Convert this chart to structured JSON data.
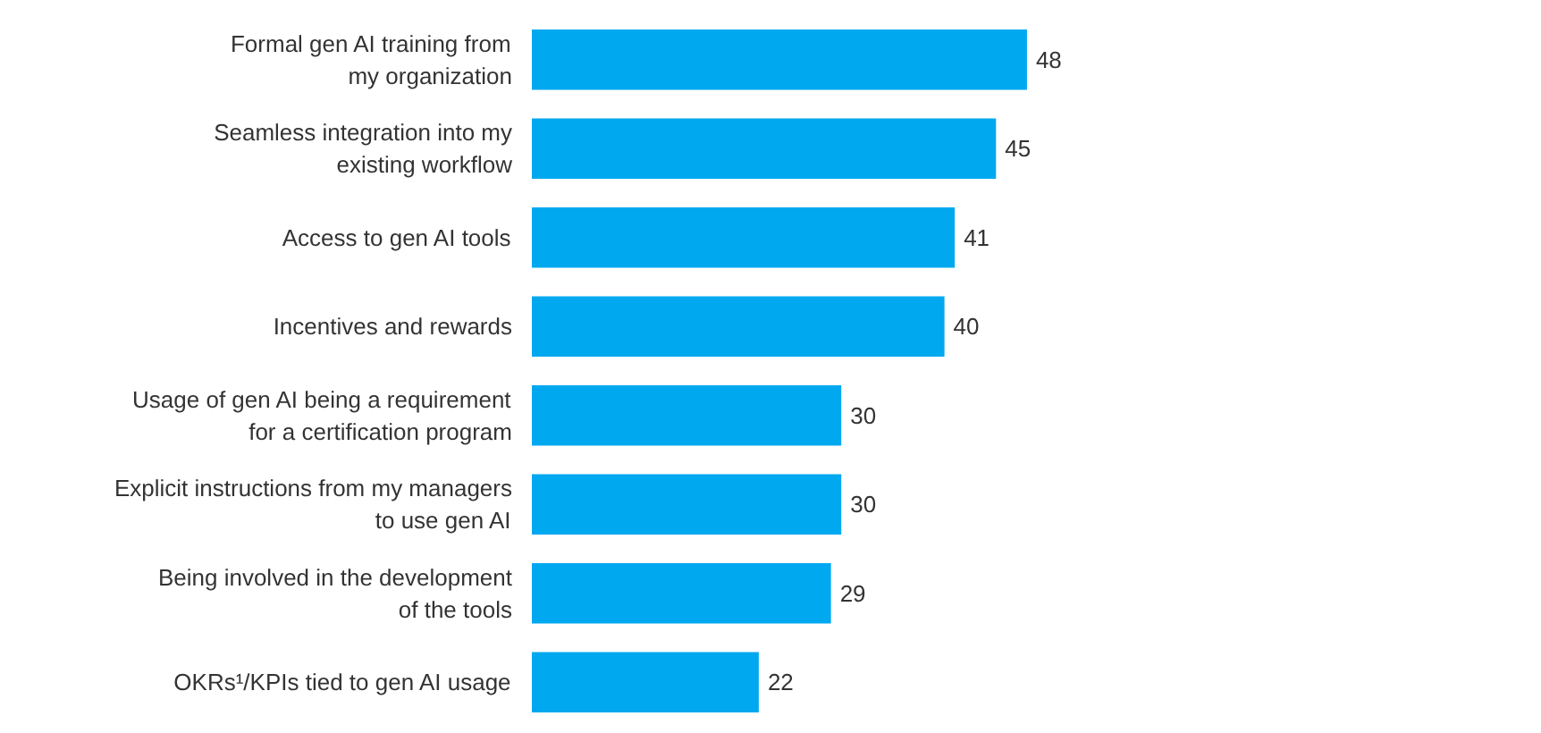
{
  "chart_data": {
    "type": "bar",
    "orientation": "horizontal",
    "categories": [
      "Formal gen AI training from\nmy organization",
      "Seamless integration into my\nexisting workflow",
      "Access to gen AI tools",
      "Incentives and rewards",
      "Usage of gen AI being a requirement\nfor a certification program",
      "Explicit instructions from my managers\nto use gen AI",
      "Being involved in the development\nof the tools",
      "OKRs¹/KPIs tied to gen AI usage"
    ],
    "values": [
      48,
      45,
      41,
      40,
      30,
      30,
      29,
      22
    ],
    "color": "#00a8f0",
    "data_labels": true,
    "grid": false
  }
}
